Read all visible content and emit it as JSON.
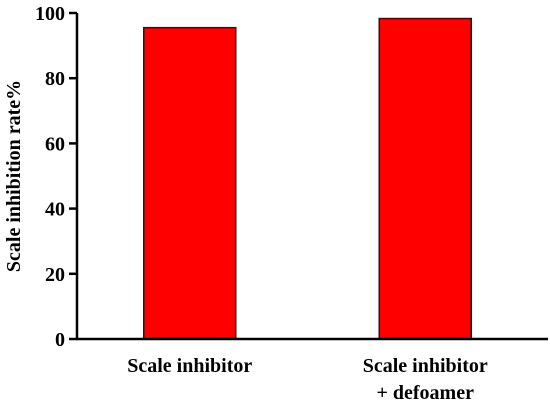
{
  "chart_data": {
    "type": "bar",
    "categories": [
      [
        "Scale inhibitor"
      ],
      [
        "Scale inhibitor",
        "+ defoamer"
      ]
    ],
    "values": [
      95.5,
      98.3
    ],
    "ylabel": "Scale inhibition rate%",
    "xlabel": "",
    "ylim": [
      0,
      100
    ],
    "yticks": [
      0,
      20,
      40,
      60,
      80,
      100
    ],
    "bar_color": "#ff0000",
    "bar_edge_color": "#1a1a1a",
    "grid": false
  }
}
